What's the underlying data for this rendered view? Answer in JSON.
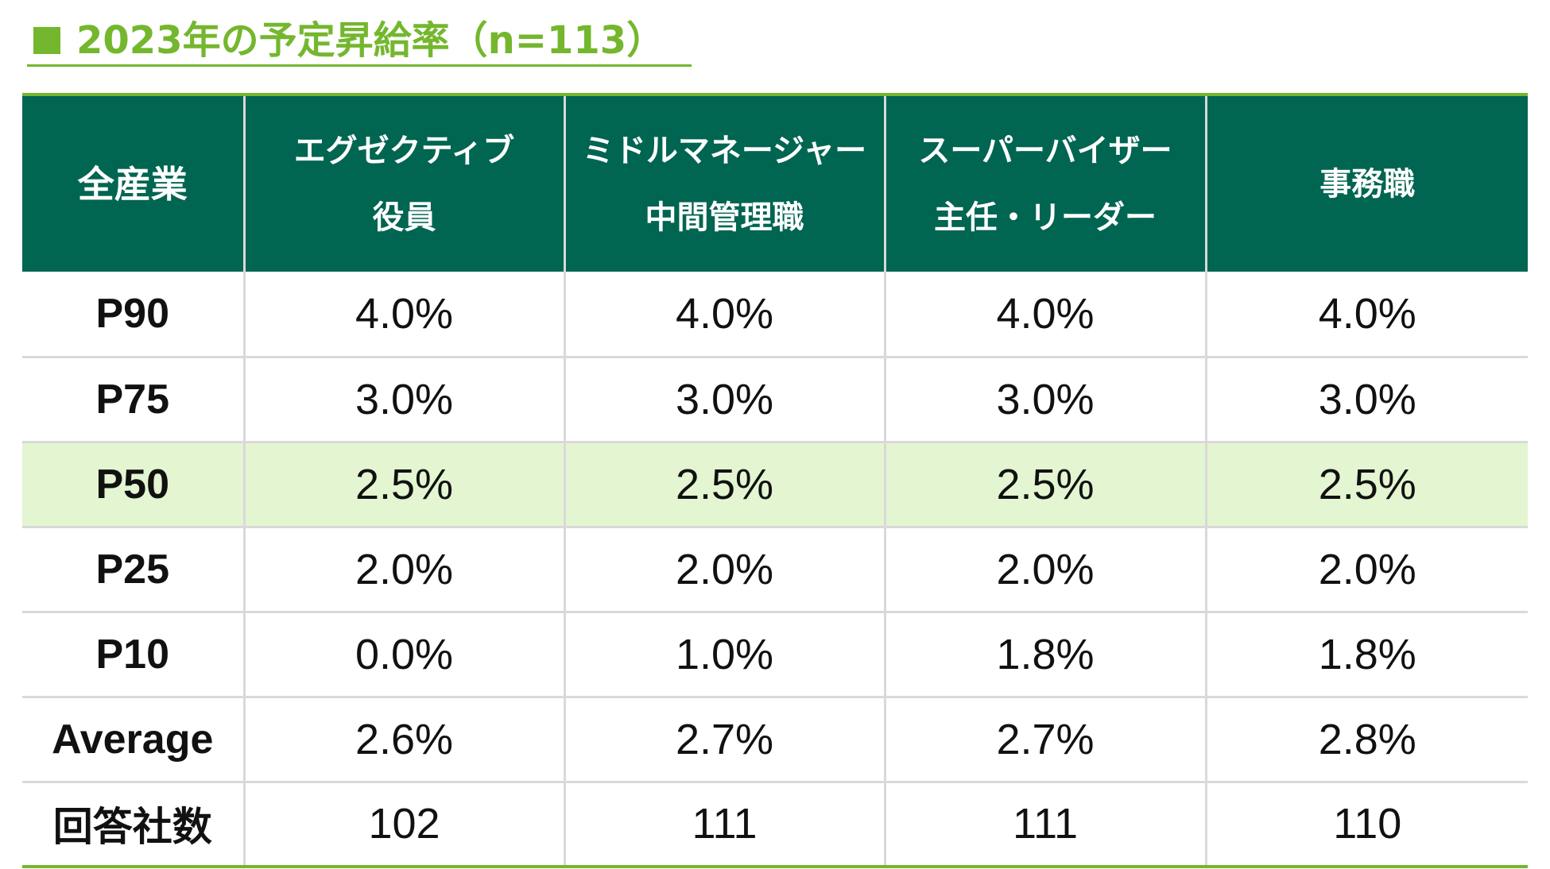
{
  "title": "2023年の予定昇給率（n=113）",
  "colors": {
    "accent_green": "#74b72e",
    "header_bg": "#006551",
    "highlight_row": "#e3f5d1",
    "grid": "#d9d9d9"
  },
  "chart_data": {
    "type": "table",
    "title": "2023年の予定昇給率（n=113）",
    "header": {
      "corner": "全産業",
      "columns": [
        {
          "line1": "エグゼクティブ",
          "line2": "役員"
        },
        {
          "line1": "ミドルマネージャー",
          "line2": "中間管理職"
        },
        {
          "line1": "スーパーバイザー",
          "line2": "主任・リーダー"
        },
        {
          "line1": "事務職",
          "line2": ""
        }
      ]
    },
    "rows": [
      {
        "label": "P90",
        "values": [
          "4.0%",
          "4.0%",
          "4.0%",
          "4.0%"
        ],
        "highlight": false
      },
      {
        "label": "P75",
        "values": [
          "3.0%",
          "3.0%",
          "3.0%",
          "3.0%"
        ],
        "highlight": false
      },
      {
        "label": "P50",
        "values": [
          "2.5%",
          "2.5%",
          "2.5%",
          "2.5%"
        ],
        "highlight": true
      },
      {
        "label": "P25",
        "values": [
          "2.0%",
          "2.0%",
          "2.0%",
          "2.0%"
        ],
        "highlight": false
      },
      {
        "label": "P10",
        "values": [
          "0.0%",
          "1.0%",
          "1.8%",
          "1.8%"
        ],
        "highlight": false
      },
      {
        "label": "Average",
        "values": [
          "2.6%",
          "2.7%",
          "2.7%",
          "2.8%"
        ],
        "highlight": false
      },
      {
        "label": "回答社数",
        "values": [
          "102",
          "111",
          "111",
          "110"
        ],
        "highlight": false
      }
    ]
  }
}
